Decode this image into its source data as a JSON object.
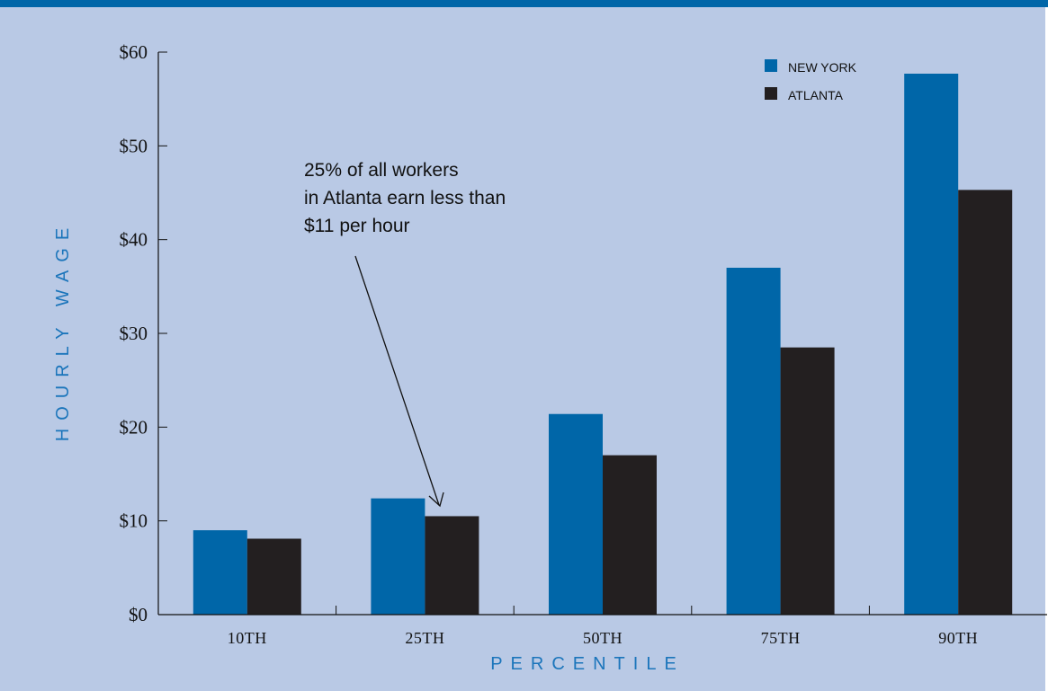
{
  "chart_data": {
    "type": "bar",
    "categories": [
      "10TH",
      "25TH",
      "50TH",
      "75TH",
      "90TH"
    ],
    "series": [
      {
        "name": "NEW YORK",
        "color": "#0066a8",
        "values": [
          9,
          12.4,
          21.4,
          37,
          57.7
        ]
      },
      {
        "name": "ATLANTA",
        "color": "#231f20",
        "values": [
          8.1,
          10.5,
          17,
          28.5,
          45.3
        ]
      }
    ],
    "xlabel": "PERCENTILE",
    "ylabel": "HOURLY WAGE",
    "ylim": [
      0,
      60
    ],
    "yticks": [
      0,
      10,
      20,
      30,
      40,
      50,
      60
    ],
    "ytick_labels": [
      "$0",
      "$10",
      "$20",
      "$30",
      "$40",
      "$50",
      "$60"
    ],
    "legend_position": "top-right",
    "grid": false,
    "annotation": {
      "lines": [
        "25% of all workers",
        "in Atlanta earn less than",
        "$11 per hour"
      ],
      "target_category": "25TH",
      "target_series": "ATLANTA"
    }
  }
}
